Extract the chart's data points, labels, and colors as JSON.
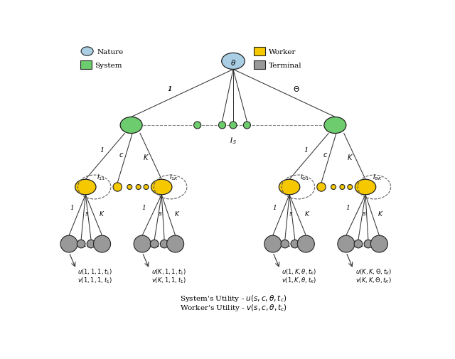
{
  "bg_color": "#ffffff",
  "nature_color": "#aacfe4",
  "system_color": "#6dcc6d",
  "worker_color": "#f5c800",
  "terminal_color": "#999999",
  "fig_width": 6.4,
  "fig_height": 5.06,
  "legend": [
    {
      "label": "Nature",
      "color": "#aacfe4",
      "type": "ellipse"
    },
    {
      "label": "System",
      "color": "#6dcc6d",
      "type": "rect"
    },
    {
      "label": "Worker",
      "color": "#f5c800",
      "type": "rect"
    },
    {
      "label": "Terminal",
      "color": "#999999",
      "type": "rect"
    }
  ]
}
